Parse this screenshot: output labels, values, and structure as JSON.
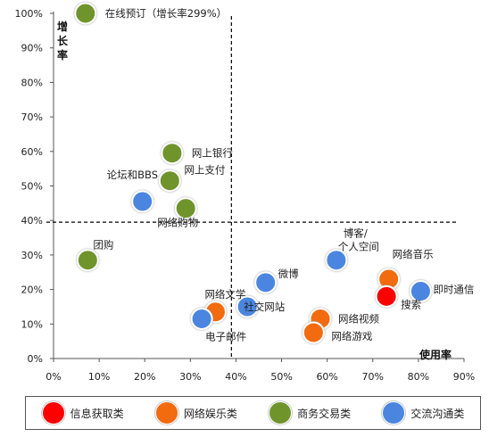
{
  "chart_data": {
    "type": "scatter",
    "xlabel": "使用率",
    "ylabel": "增长率",
    "xlim": [
      0,
      90
    ],
    "ylim": [
      0,
      100
    ],
    "x_ticks": [
      "0%",
      "10%",
      "20%",
      "30%",
      "40%",
      "50%",
      "60%",
      "70%",
      "80%",
      "90%"
    ],
    "y_ticks": [
      "0%",
      "10%",
      "20%",
      "30%",
      "40%",
      "50%",
      "60%",
      "70%",
      "80%",
      "90%",
      "100%"
    ],
    "reference_lines": {
      "x": 39,
      "y": 39.5
    },
    "grid": false,
    "legend_position": "bottom",
    "categories": [
      {
        "key": "info",
        "name": "信息获取类",
        "color": "#ff0000"
      },
      {
        "key": "entertainment",
        "name": "网络娱乐类",
        "color": "#f26b0f"
      },
      {
        "key": "commerce",
        "name": "商务交易类",
        "color": "#70942c"
      },
      {
        "key": "communication",
        "name": "交流沟通类",
        "color": "#4a86e0"
      }
    ],
    "points": [
      {
        "label": "在线预订（增长率299%）",
        "x": 7,
        "y": 100,
        "category": "commerce"
      },
      {
        "label": "网上银行",
        "x": 26,
        "y": 59.5,
        "category": "commerce"
      },
      {
        "label": "网上支付",
        "x": 25.5,
        "y": 51.5,
        "category": "commerce"
      },
      {
        "label": "论坛和BBS",
        "x": 19.5,
        "y": 45.5,
        "category": "communication"
      },
      {
        "label": "网络购物",
        "x": 29,
        "y": 43.5,
        "category": "commerce"
      },
      {
        "label": "团购",
        "x": 7.5,
        "y": 28.5,
        "category": "commerce"
      },
      {
        "label": "博客/\n个人空间",
        "x": 62,
        "y": 28.5,
        "category": "communication"
      },
      {
        "label": "网络音乐",
        "x": 73.5,
        "y": 23,
        "category": "entertainment"
      },
      {
        "label": "即时通信",
        "x": 80.5,
        "y": 19.5,
        "category": "communication"
      },
      {
        "label": "搜索",
        "x": 73,
        "y": 18,
        "category": "info"
      },
      {
        "label": "微博",
        "x": 46.5,
        "y": 22,
        "category": "communication"
      },
      {
        "label": "网络文学",
        "x": 35.5,
        "y": 13.5,
        "category": "entertainment"
      },
      {
        "label": "社交网站",
        "x": 42.5,
        "y": 15,
        "category": "communication"
      },
      {
        "label": "电子邮件",
        "x": 32.5,
        "y": 11.5,
        "category": "communication"
      },
      {
        "label": "网络视频",
        "x": 58.5,
        "y": 11.5,
        "category": "entertainment"
      },
      {
        "label": "网络游戏",
        "x": 57,
        "y": 7.5,
        "category": "entertainment"
      }
    ]
  }
}
